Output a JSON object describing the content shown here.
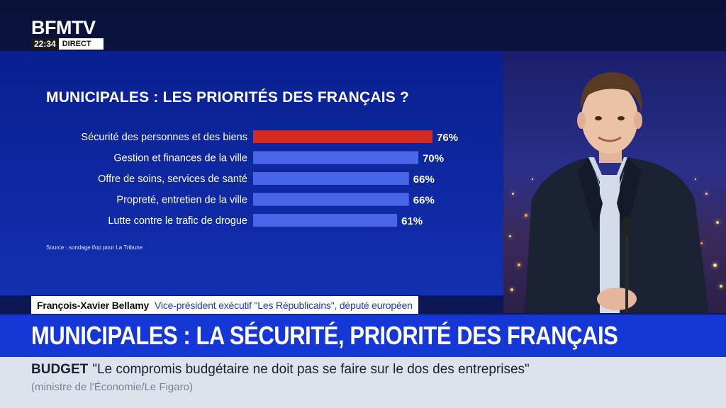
{
  "channel": {
    "logo": "BFMTV",
    "time": "22:34",
    "live": "DIRECT"
  },
  "chart_data": {
    "type": "bar",
    "orientation": "horizontal",
    "title": "MUNICIPALES : LES PRIORITÉS DES FRANÇAIS ?",
    "categories": [
      "Sécurité des personnes et des biens",
      "Gestion et finances de la ville",
      "Offre de soins, services de santé",
      "Propreté, entretien de la ville",
      "Lutte contre le trafic de drogue"
    ],
    "values": [
      76,
      70,
      66,
      66,
      61
    ],
    "value_labels": [
      "76%",
      "70%",
      "66%",
      "66%",
      "61%"
    ],
    "unit": "%",
    "xlim": [
      0,
      100
    ],
    "highlight_index": 0,
    "colors": {
      "highlight": "#d42a22",
      "default": "#4a66e8"
    },
    "source": "Source : sondage ifop pour La Tribune"
  },
  "guest": {
    "name": "François-Xavier Bellamy",
    "role": "Vice-président exécutif \"Les Républicains\", député européen"
  },
  "headline": "MUNICIPALES : LA SÉCURITÉ, PRIORITÉ DES FRANÇAIS",
  "ticker": {
    "tag": "BUDGET",
    "text": "\"Le compromis budgétaire ne doit pas se faire sur le dos des entreprises\"",
    "attribution": "(ministre de l'Économie/Le Figaro)"
  }
}
